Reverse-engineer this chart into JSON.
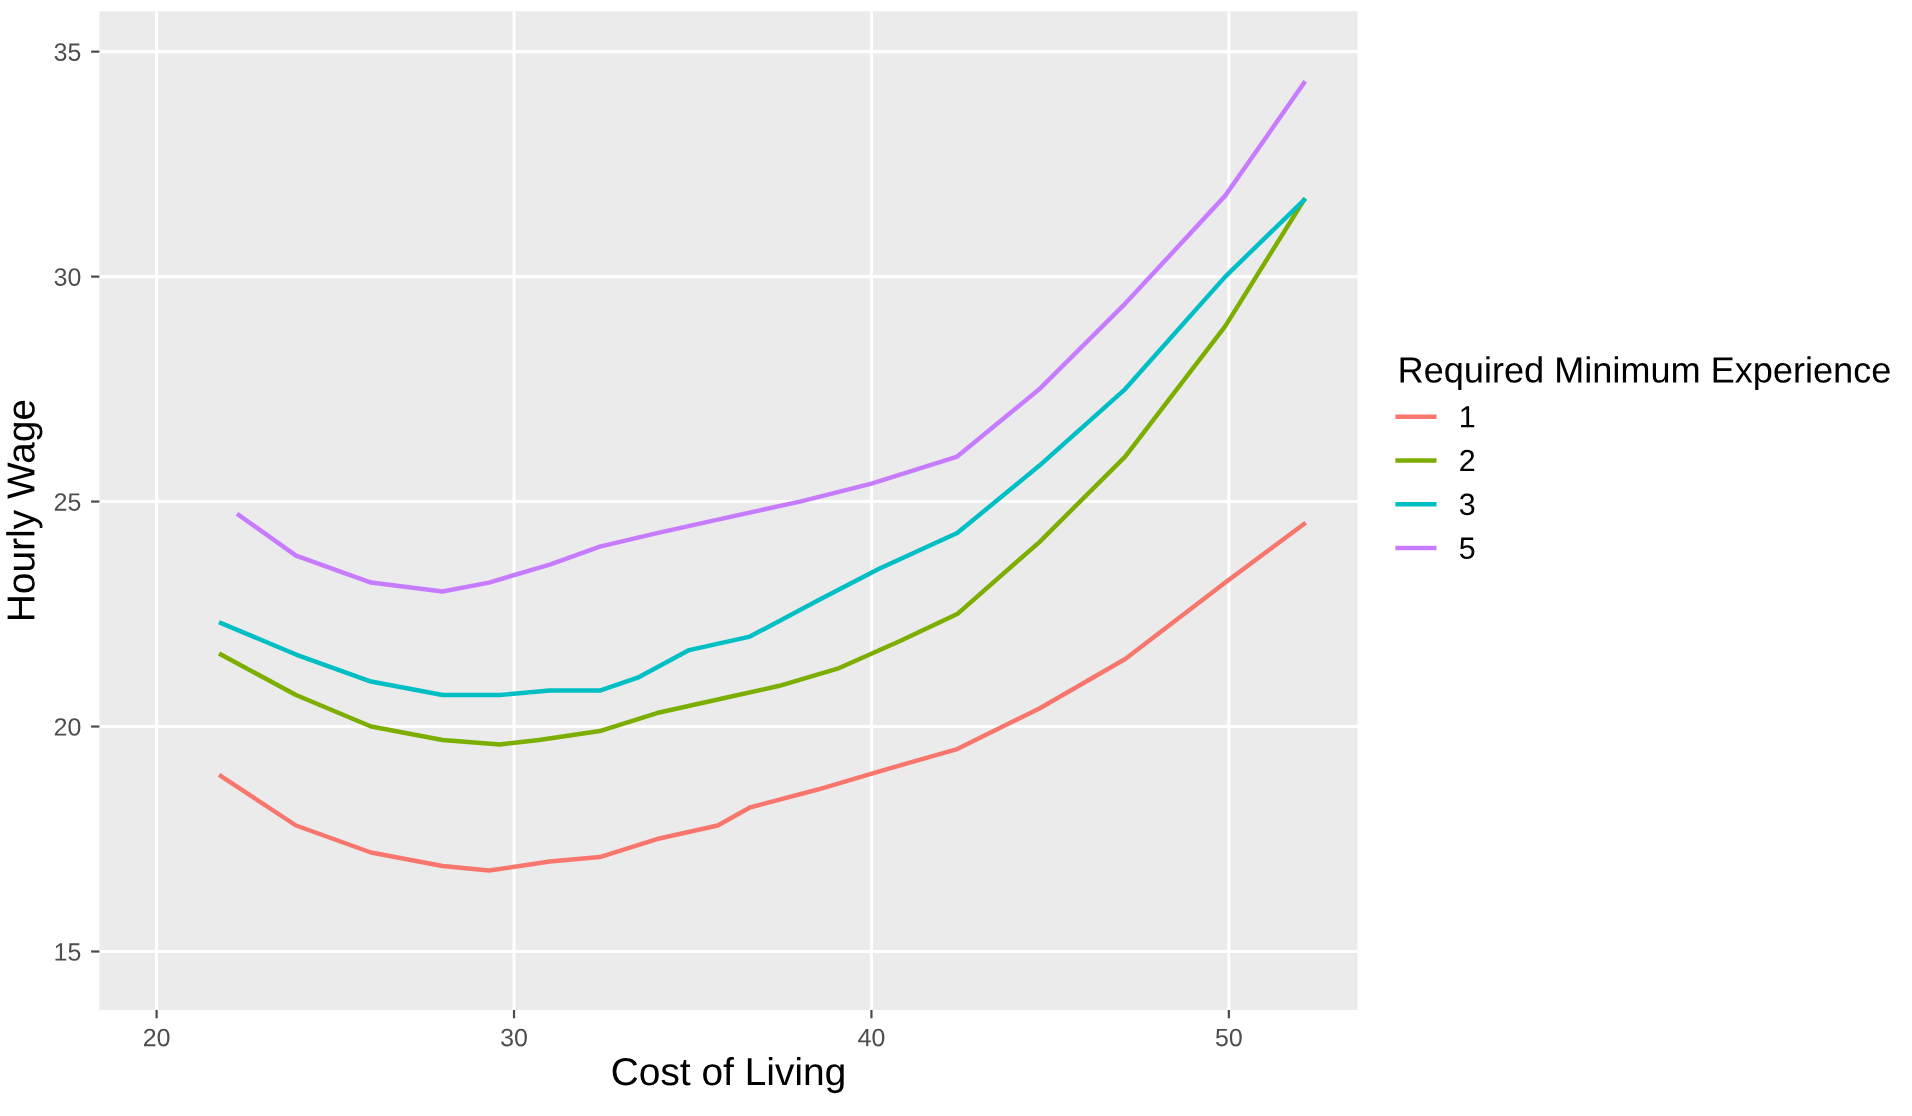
{
  "chart_data": {
    "type": "line",
    "xlabel": "Cost of Living",
    "ylabel": "Hourly Wage",
    "legend_title": "Required Minimum Experience",
    "xlim": [
      18.4,
      53.6
    ],
    "ylim": [
      13.7,
      35.9
    ],
    "xticks": [
      20,
      30,
      40,
      50
    ],
    "yticks": [
      15,
      20,
      25,
      30,
      35
    ],
    "grid": true,
    "legend": "right",
    "marker": "none",
    "line_style": "solid",
    "series": [
      {
        "name": "1",
        "color": "#f8766d",
        "x": [
          21.8,
          23.9,
          26.0,
          28.0,
          29.3,
          31.0,
          32.4,
          34.0,
          35.7,
          36.6,
          38.5,
          40.2,
          42.4,
          44.7,
          47.1,
          49.9,
          52.1
        ],
        "values": [
          18.9,
          17.8,
          17.2,
          16.9,
          16.8,
          17.0,
          17.1,
          17.5,
          17.8,
          18.2,
          18.6,
          19.0,
          19.5,
          20.4,
          21.5,
          23.2,
          24.5
        ]
      },
      {
        "name": "2",
        "color": "#7cae00",
        "x": [
          21.8,
          23.9,
          26.0,
          28.0,
          29.6,
          30.7,
          32.4,
          34.0,
          35.7,
          37.4,
          39.1,
          40.8,
          42.4,
          44.7,
          47.1,
          49.9,
          52.1
        ],
        "values": [
          21.6,
          20.7,
          20.0,
          19.7,
          19.6,
          19.7,
          19.9,
          20.3,
          20.6,
          20.9,
          21.3,
          21.9,
          22.5,
          24.1,
          26.0,
          28.9,
          31.7
        ]
      },
      {
        "name": "3",
        "color": "#00bfc4",
        "x": [
          21.8,
          23.9,
          26.0,
          28.0,
          29.6,
          31.0,
          32.4,
          33.5,
          34.9,
          36.6,
          38.5,
          40.2,
          42.4,
          44.7,
          47.1,
          49.9,
          52.1
        ],
        "values": [
          22.3,
          21.6,
          21.0,
          20.7,
          20.7,
          20.8,
          20.8,
          21.1,
          21.7,
          22.0,
          22.8,
          23.5,
          24.3,
          25.8,
          27.5,
          30.0,
          31.7
        ]
      },
      {
        "name": "5",
        "color": "#c77cff",
        "x": [
          22.3,
          23.9,
          26.0,
          28.0,
          29.3,
          31.0,
          32.4,
          34.0,
          35.7,
          38.0,
          40.0,
          42.4,
          44.7,
          47.1,
          49.9,
          52.1
        ],
        "values": [
          24.7,
          23.8,
          23.2,
          23.0,
          23.2,
          23.6,
          24.0,
          24.3,
          24.6,
          25.0,
          25.4,
          26.0,
          27.5,
          29.4,
          31.8,
          34.3
        ]
      }
    ]
  }
}
